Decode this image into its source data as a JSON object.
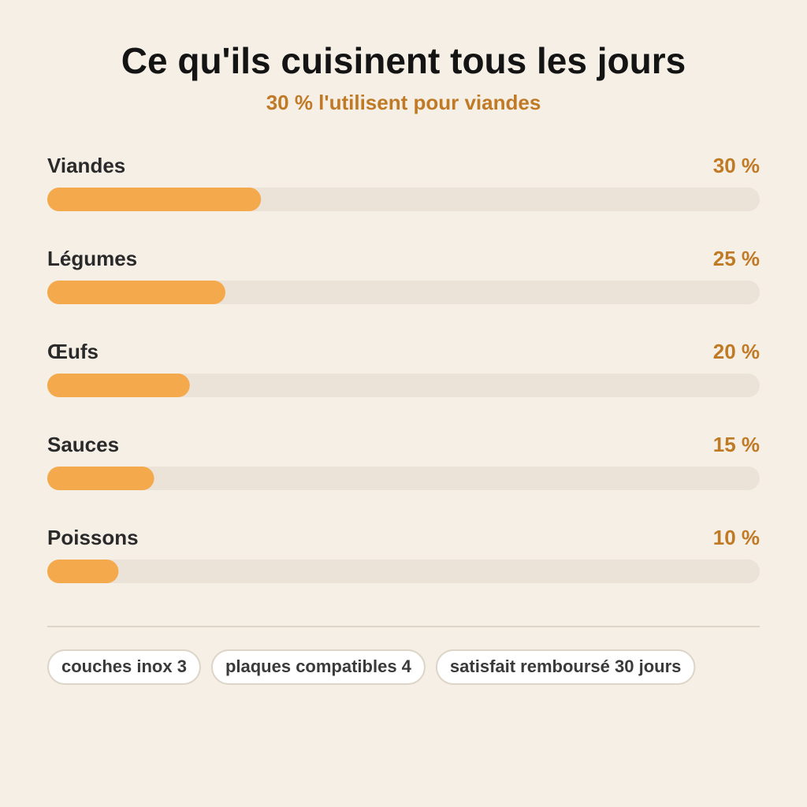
{
  "chart_data": {
    "type": "bar",
    "title": "Ce qu'ils cuisinent tous les jours",
    "subtitle": "30 % l'utilisent pour viandes",
    "categories": [
      "Viandes",
      "Légumes",
      "Œufs",
      "Sauces",
      "Poissons"
    ],
    "values": [
      30,
      25,
      20,
      15,
      10
    ],
    "value_labels": [
      "30 %",
      "25 %",
      "20 %",
      "15 %",
      "10 %"
    ],
    "color": "#f5a94d",
    "xlim": [
      0,
      100
    ]
  },
  "badges": [
    "couches inox 3",
    "plaques compatibles 4",
    "satisfait remboursé 30 jours"
  ]
}
